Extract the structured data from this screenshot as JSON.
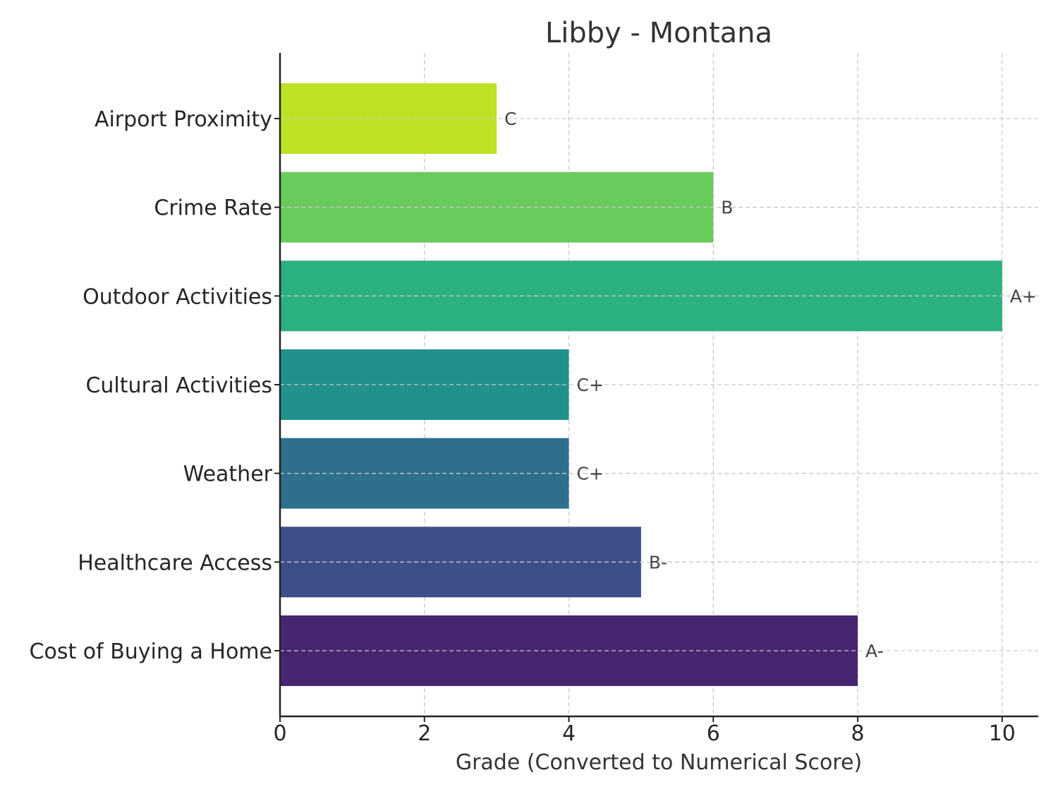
{
  "chart_data": {
    "type": "bar",
    "orientation": "horizontal",
    "title": "Libby - Montana",
    "xlabel": "Grade (Converted to Numerical Score)",
    "ylabel": "",
    "xlim": [
      0,
      10.5
    ],
    "xticks": [
      0,
      2,
      4,
      6,
      8,
      10
    ],
    "grid": true,
    "categories": [
      "Cost of Buying a Home",
      "Healthcare Access",
      "Weather",
      "Cultural Activities",
      "Outdoor Activities",
      "Crime Rate",
      "Airport Proximity"
    ],
    "values": [
      8,
      5,
      4,
      4,
      10,
      6,
      3
    ],
    "value_labels": [
      "A-",
      "B-",
      "C+",
      "C+",
      "A+",
      "B",
      "C"
    ],
    "colors": [
      "#472571",
      "#3d4e88",
      "#2d6f8d",
      "#21918c",
      "#2bb07f",
      "#69cb5c",
      "#bde224"
    ]
  }
}
